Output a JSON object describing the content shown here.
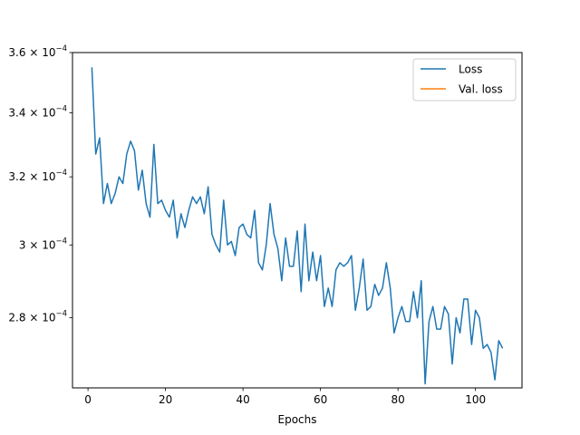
{
  "chart_data": {
    "type": "line",
    "title": "",
    "xlabel": "Epochs",
    "ylabel": "",
    "yscale": "log",
    "xlim": [
      -4,
      112
    ],
    "ylim": [
      0.000262,
      0.00036
    ],
    "xticks": [
      0,
      20,
      40,
      60,
      80,
      100
    ],
    "xtick_labels": [
      "0",
      "20",
      "40",
      "60",
      "80",
      "100"
    ],
    "yticks": [
      0.00028,
      0.0003,
      0.00032,
      0.00034,
      0.00036
    ],
    "ytick_mantissas": [
      "2.8",
      "3",
      "3.2",
      "3.4",
      "3.6"
    ],
    "ytick_base": "10",
    "ytick_exponent": "−4",
    "grid": false,
    "legend_position": "top-right",
    "series": [
      {
        "name": "Loss",
        "color": "#1f77b4",
        "x": [
          1,
          2,
          3,
          4,
          5,
          6,
          7,
          8,
          9,
          10,
          11,
          12,
          13,
          14,
          15,
          16,
          17,
          18,
          19,
          20,
          21,
          22,
          23,
          24,
          25,
          26,
          27,
          28,
          29,
          30,
          31,
          32,
          33,
          34,
          35,
          36,
          37,
          38,
          39,
          40,
          41,
          42,
          43,
          44,
          45,
          46,
          47,
          48,
          49,
          50,
          51,
          52,
          53,
          54,
          55,
          56,
          57,
          58,
          59,
          60,
          61,
          62,
          63,
          64,
          65,
          66,
          67,
          68,
          69,
          70,
          71,
          72,
          73,
          74,
          75,
          76,
          77,
          78,
          79,
          80,
          81,
          82,
          83,
          84,
          85,
          86,
          87,
          88,
          89,
          90,
          91,
          92,
          93,
          94,
          95,
          96,
          97,
          98,
          99,
          100,
          101,
          102,
          103,
          104,
          105,
          106,
          107
        ],
        "values": [
          0.000355,
          0.000327,
          0.000332,
          0.000312,
          0.000318,
          0.000312,
          0.000315,
          0.00032,
          0.000318,
          0.000327,
          0.000331,
          0.000328,
          0.000316,
          0.000322,
          0.000312,
          0.000308,
          0.00033,
          0.000312,
          0.000313,
          0.00031,
          0.000308,
          0.000313,
          0.000302,
          0.000309,
          0.000305,
          0.00031,
          0.000314,
          0.000312,
          0.000314,
          0.000309,
          0.000317,
          0.000303,
          0.0003,
          0.000298,
          0.000313,
          0.0003,
          0.000301,
          0.000297,
          0.000305,
          0.000306,
          0.000303,
          0.000302,
          0.00031,
          0.000295,
          0.000293,
          0.0003,
          0.000312,
          0.000303,
          0.000299,
          0.00029,
          0.000302,
          0.000294,
          0.000294,
          0.000304,
          0.000287,
          0.000306,
          0.00029,
          0.000298,
          0.00029,
          0.000297,
          0.000283,
          0.000288,
          0.000283,
          0.000293,
          0.000295,
          0.000294,
          0.000295,
          0.000297,
          0.000282,
          0.000288,
          0.000296,
          0.000282,
          0.000283,
          0.000289,
          0.000286,
          0.000288,
          0.000295,
          0.000288,
          0.000276,
          0.00028,
          0.000283,
          0.000279,
          0.000279,
          0.000287,
          0.00028,
          0.00029,
          0.000263,
          0.000279,
          0.000283,
          0.000277,
          0.000277,
          0.000283,
          0.000281,
          0.000268,
          0.00028,
          0.000276,
          0.000285,
          0.000285,
          0.000273,
          0.000282,
          0.00028,
          0.000272,
          0.000273,
          0.000271,
          0.000264,
          0.000274,
          0.000272
        ]
      },
      {
        "name": "Val. loss",
        "color": "#ff7f0e",
        "x": [],
        "values": []
      }
    ]
  }
}
